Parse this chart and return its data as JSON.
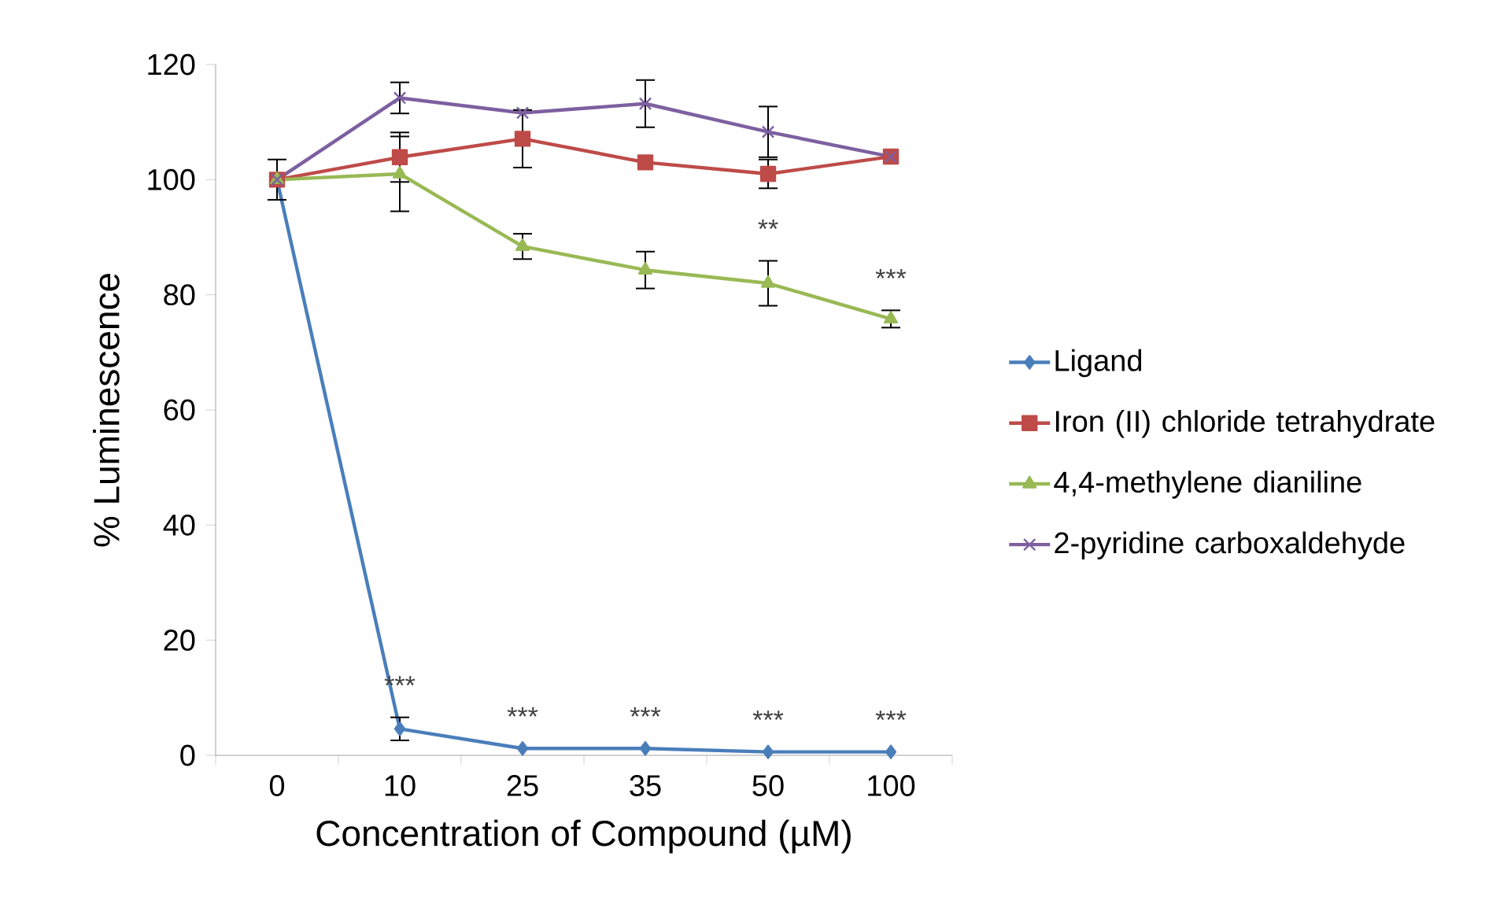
{
  "chart_data": {
    "type": "line",
    "xlabel": "Concentration of Compound (µM)",
    "ylabel": "% Luminescence",
    "categories": [
      "0",
      "10",
      "25",
      "35",
      "50",
      "100"
    ],
    "series": [
      {
        "name": "Ligand",
        "color": "#4a7ebb",
        "marker": "diamond",
        "values": [
          100,
          4.6,
          1.2,
          1.2,
          0.6,
          0.6
        ],
        "errors": [
          null,
          2,
          null,
          null,
          null,
          null
        ],
        "value_labels": [
          null,
          "***",
          "***",
          "***",
          "***",
          "***"
        ]
      },
      {
        "name": "Iron (II) chloride tetrahydrate",
        "color": "#be4b48",
        "marker": "square",
        "values": [
          100,
          103.9,
          107.1,
          103,
          101,
          104
        ],
        "errors": [
          3.5,
          4.3,
          5,
          null,
          2.5,
          null
        ]
      },
      {
        "name": "4,4-methylene dianiline",
        "color": "#98b954",
        "marker": "triangle",
        "values": [
          100,
          101,
          88.4,
          84.3,
          82,
          75.8
        ],
        "errors": [
          null,
          6.5,
          2.2,
          3.2,
          3.9,
          1.5
        ],
        "value_labels": [
          null,
          null,
          null,
          null,
          "**",
          "***"
        ]
      },
      {
        "name": "2-pyridine carboxaldehyde",
        "color": "#7d60a0",
        "marker": "cross",
        "values": [
          100,
          114.2,
          111.6,
          113.2,
          108.3,
          104
        ],
        "errors": [
          null,
          2.7,
          null,
          4.1,
          4.4,
          null
        ]
      }
    ],
    "ylim": [
      0,
      120
    ],
    "yticks": [
      0,
      20,
      40,
      60,
      80,
      100,
      120
    ],
    "legend": "right",
    "line_style": "solid"
  }
}
